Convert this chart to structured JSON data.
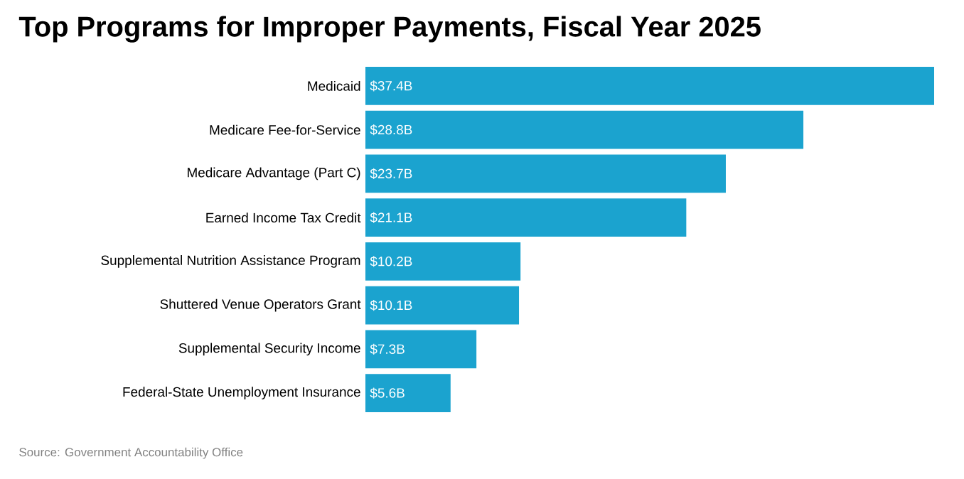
{
  "chart_data": {
    "type": "bar",
    "orientation": "horizontal",
    "title": "Top Programs for Improper Payments, Fiscal Year 2025",
    "categories": [
      "Medicaid",
      "Medicare Fee-for-Service",
      "Medicare Advantage (Part C)",
      "Earned Income Tax Credit",
      "Supplemental Nutrition Assistance Program",
      "Shuttered Venue Operators Grant",
      "Supplemental Security Income",
      "Federal-State Unemployment Insurance"
    ],
    "values": [
      37.4,
      28.8,
      23.7,
      21.1,
      10.2,
      10.1,
      7.3,
      5.6
    ],
    "value_labels": [
      "$37.4B",
      "$28.8B",
      "$23.7B",
      "$21.1B",
      "$10.2B",
      "$10.1B",
      "$7.3B",
      "$5.6B"
    ],
    "color": "#1ba3cf",
    "xlim": [
      0,
      37.4
    ],
    "annotations": [
      "Source: Government Accountability Office"
    ]
  }
}
